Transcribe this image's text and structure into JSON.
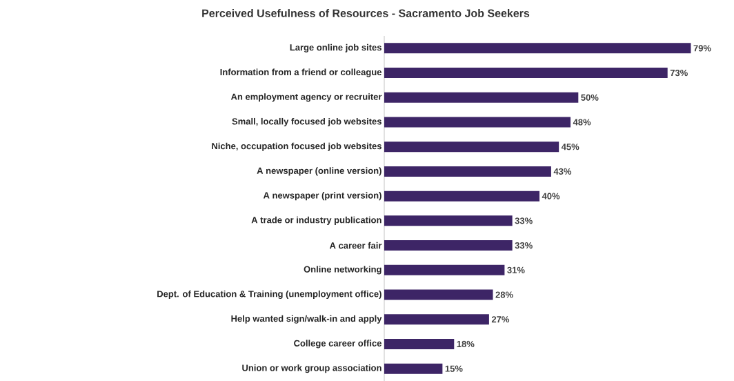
{
  "chart_data": {
    "type": "bar",
    "orientation": "horizontal",
    "title": "Perceived Usefulness  of Resources  - Sacramento  Job Seekers",
    "categories": [
      "Large online job sites",
      "Information from a friend or colleague",
      "An employment agency or recruiter",
      "Small, locally focused job websites",
      "Niche, occupation focused job websites",
      "A newspaper (online version)",
      "A newspaper (print version)",
      "A trade or industry publication",
      "A career fair",
      "Online networking",
      "Dept. of Education & Training (unemployment office)",
      "Help wanted sign/walk-in and apply",
      "College career office",
      "Union or work group association"
    ],
    "values": [
      79,
      73,
      50,
      48,
      45,
      43,
      40,
      33,
      33,
      31,
      28,
      27,
      18,
      15
    ],
    "value_labels": [
      "79%",
      "73%",
      "50%",
      "48%",
      "45%",
      "43%",
      "40%",
      "33%",
      "33%",
      "31%",
      "28%",
      "27%",
      "18%",
      "15%"
    ],
    "color": "#3d2566"
  }
}
